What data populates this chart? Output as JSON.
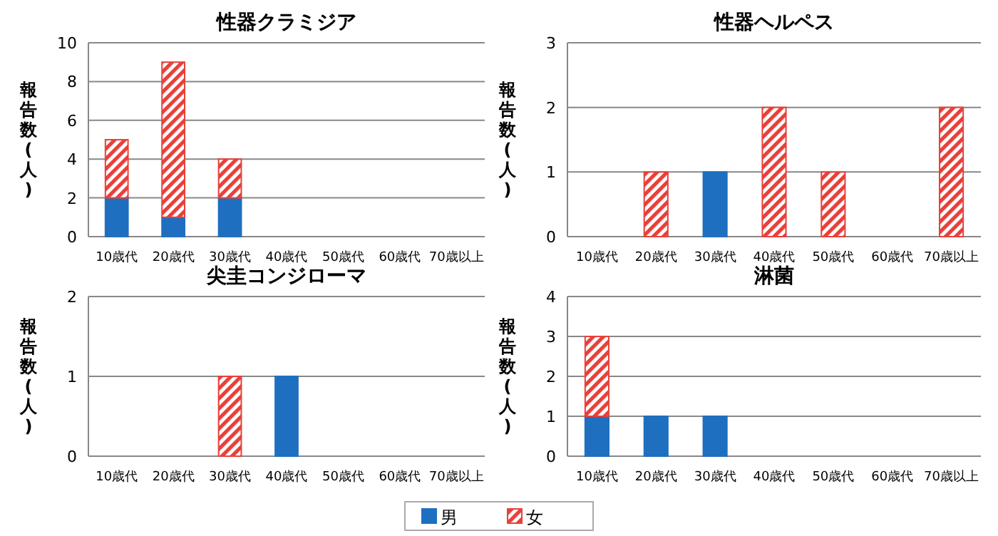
{
  "chart_data": [
    {
      "type": "bar",
      "title": "性器クラミジア",
      "ylabel": "報告数(人)",
      "categories": [
        "10歳代",
        "20歳代",
        "30歳代",
        "40歳代",
        "50歳代",
        "60歳代",
        "70歳以上"
      ],
      "stacked": true,
      "ylim": [
        0,
        10
      ],
      "yticks": [
        0,
        2,
        4,
        6,
        8,
        10
      ],
      "grid": "y",
      "series": [
        {
          "color": "#1f6fc0",
          "values": [
            2,
            1,
            2,
            0,
            0,
            0,
            0
          ]
        },
        {
          "color": "#e8403a",
          "values": [
            3,
            8,
            2,
            0,
            0,
            0,
            0
          ]
        }
      ]
    },
    {
      "type": "bar",
      "title": "性器ヘルペス",
      "ylabel": "報告数(人)",
      "categories": [
        "10歳代",
        "20歳代",
        "30歳代",
        "40歳代",
        "50歳代",
        "60歳代",
        "70歳以上"
      ],
      "stacked": true,
      "ylim": [
        0,
        3
      ],
      "yticks": [
        0,
        1,
        2,
        3
      ],
      "grid": "y",
      "series": [
        {
          "color": "#1f6fc0",
          "values": [
            0,
            0,
            1,
            0,
            0,
            0,
            0
          ]
        },
        {
          "color": "#e8403a",
          "values": [
            0,
            1,
            0,
            2,
            1,
            0,
            2
          ]
        }
      ]
    },
    {
      "type": "bar",
      "title": "尖圭コンジローマ",
      "ylabel": "報告数(人)",
      "categories": [
        "10歳代",
        "20歳代",
        "30歳代",
        "40歳代",
        "50歳代",
        "60歳代",
        "70歳以上"
      ],
      "stacked": true,
      "ylim": [
        0,
        2
      ],
      "yticks": [
        0,
        1,
        2
      ],
      "grid": "y",
      "series": [
        {
          "color": "#1f6fc0",
          "values": [
            0,
            0,
            0,
            1,
            0,
            0,
            0
          ]
        },
        {
          "color": "#e8403a",
          "values": [
            0,
            0,
            1,
            0,
            0,
            0,
            0
          ]
        }
      ]
    },
    {
      "type": "bar",
      "title": "淋菌",
      "ylabel": "報告数(人)",
      "categories": [
        "10歳代",
        "20歳代",
        "30歳代",
        "40歳代",
        "50歳代",
        "60歳代",
        "70歳以上"
      ],
      "stacked": true,
      "ylim": [
        0,
        4
      ],
      "yticks": [
        0,
        1,
        2,
        3,
        4
      ],
      "grid": "y",
      "legend": "bottom",
      "series": [
        {
          "name": "男",
          "color": "#1f6fc0",
          "values": [
            1,
            1,
            1,
            0,
            0,
            0,
            0
          ]
        },
        {
          "name": "女",
          "color": "#e8403a",
          "values": [
            2,
            0,
            0,
            0,
            0,
            0,
            0
          ]
        }
      ]
    }
  ]
}
